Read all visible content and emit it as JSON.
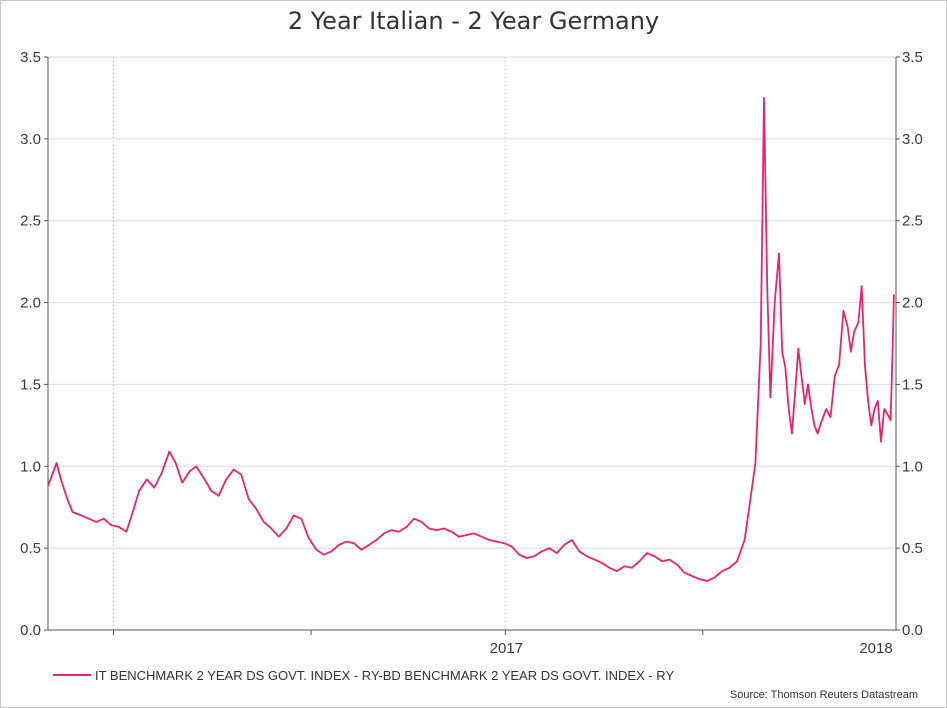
{
  "chart_data": {
    "type": "line",
    "title": "2 Year Italian - 2 Year Germany",
    "ylim": [
      0.0,
      3.5
    ],
    "yticks": [
      "0.0",
      "0.5",
      "1.0",
      "1.5",
      "2.0",
      "2.5",
      "3.0",
      "3.5"
    ],
    "xlim": [
      "2016-05-01",
      "2018-06-30"
    ],
    "xticks": [
      {
        "label": "2017",
        "date": "2017-01-01"
      },
      {
        "label": "2018",
        "date": "2018-01-01"
      }
    ],
    "grid": true,
    "legend_position": "bottom-left",
    "series": [
      {
        "name": "IT BENCHMARK 2 YEAR DS GOVT. INDEX - RY-BD BENCHMARK 2 YEAR DS GOVT. INDEX - RY",
        "color": "#e8246f",
        "points": [
          [
            "2016-05-01",
            0.88
          ],
          [
            "2016-05-05",
            0.95
          ],
          [
            "2016-05-09",
            1.02
          ],
          [
            "2016-05-13",
            0.92
          ],
          [
            "2016-05-19",
            0.8
          ],
          [
            "2016-05-24",
            0.72
          ],
          [
            "2016-06-01",
            0.7
          ],
          [
            "2016-06-08",
            0.68
          ],
          [
            "2016-06-15",
            0.66
          ],
          [
            "2016-06-22",
            0.68
          ],
          [
            "2016-06-29",
            0.64
          ],
          [
            "2016-07-06",
            0.63
          ],
          [
            "2016-07-13",
            0.6
          ],
          [
            "2016-07-18",
            0.7
          ],
          [
            "2016-07-25",
            0.85
          ],
          [
            "2016-08-01",
            0.92
          ],
          [
            "2016-08-08",
            0.87
          ],
          [
            "2016-08-15",
            0.96
          ],
          [
            "2016-08-22",
            1.09
          ],
          [
            "2016-08-28",
            1.02
          ],
          [
            "2016-09-03",
            0.9
          ],
          [
            "2016-09-10",
            0.97
          ],
          [
            "2016-09-16",
            1.0
          ],
          [
            "2016-09-23",
            0.93
          ],
          [
            "2016-09-30",
            0.85
          ],
          [
            "2016-10-07",
            0.82
          ],
          [
            "2016-10-14",
            0.92
          ],
          [
            "2016-10-21",
            0.98
          ],
          [
            "2016-10-28",
            0.95
          ],
          [
            "2016-11-04",
            0.8
          ],
          [
            "2016-11-11",
            0.74
          ],
          [
            "2016-11-18",
            0.66
          ],
          [
            "2016-11-25",
            0.62
          ],
          [
            "2016-12-02",
            0.57
          ],
          [
            "2016-12-09",
            0.62
          ],
          [
            "2016-12-16",
            0.7
          ],
          [
            "2016-12-23",
            0.68
          ],
          [
            "2016-12-30",
            0.56
          ],
          [
            "2017-01-06",
            0.49
          ],
          [
            "2017-01-13",
            0.46
          ],
          [
            "2017-01-20",
            0.48
          ],
          [
            "2017-01-27",
            0.52
          ],
          [
            "2017-02-03",
            0.54
          ],
          [
            "2017-02-10",
            0.53
          ],
          [
            "2017-02-17",
            0.49
          ],
          [
            "2017-02-24",
            0.52
          ],
          [
            "2017-03-03",
            0.55
          ],
          [
            "2017-03-10",
            0.59
          ],
          [
            "2017-03-17",
            0.61
          ],
          [
            "2017-03-24",
            0.6
          ],
          [
            "2017-03-31",
            0.63
          ],
          [
            "2017-04-07",
            0.68
          ],
          [
            "2017-04-14",
            0.66
          ],
          [
            "2017-04-21",
            0.62
          ],
          [
            "2017-04-28",
            0.61
          ],
          [
            "2017-05-05",
            0.62
          ],
          [
            "2017-05-12",
            0.6
          ],
          [
            "2017-05-19",
            0.57
          ],
          [
            "2017-05-26",
            0.58
          ],
          [
            "2017-06-02",
            0.59
          ],
          [
            "2017-06-09",
            0.57
          ],
          [
            "2017-06-16",
            0.55
          ],
          [
            "2017-06-23",
            0.54
          ],
          [
            "2017-06-30",
            0.53
          ],
          [
            "2017-07-07",
            0.51
          ],
          [
            "2017-07-14",
            0.46
          ],
          [
            "2017-07-21",
            0.44
          ],
          [
            "2017-07-28",
            0.45
          ],
          [
            "2017-08-04",
            0.48
          ],
          [
            "2017-08-11",
            0.5
          ],
          [
            "2017-08-18",
            0.47
          ],
          [
            "2017-08-25",
            0.52
          ],
          [
            "2017-09-01",
            0.55
          ],
          [
            "2017-09-08",
            0.48
          ],
          [
            "2017-09-15",
            0.45
          ],
          [
            "2017-09-22",
            0.43
          ],
          [
            "2017-09-29",
            0.41
          ],
          [
            "2017-10-06",
            0.38
          ],
          [
            "2017-10-13",
            0.36
          ],
          [
            "2017-10-20",
            0.39
          ],
          [
            "2017-10-27",
            0.38
          ],
          [
            "2017-11-03",
            0.42
          ],
          [
            "2017-11-10",
            0.47
          ],
          [
            "2017-11-17",
            0.45
          ],
          [
            "2017-11-24",
            0.42
          ],
          [
            "2017-12-01",
            0.43
          ],
          [
            "2017-12-08",
            0.4
          ],
          [
            "2017-12-15",
            0.35
          ],
          [
            "2017-12-22",
            0.33
          ],
          [
            "2017-12-29",
            0.31
          ],
          [
            "2018-01-05",
            0.3
          ],
          [
            "2018-01-12",
            0.32
          ],
          [
            "2018-01-19",
            0.36
          ],
          [
            "2018-01-26",
            0.38
          ],
          [
            "2018-02-02",
            0.42
          ],
          [
            "2018-02-09",
            0.55
          ],
          [
            "2018-02-14",
            0.78
          ],
          [
            "2018-02-19",
            1.02
          ],
          [
            "2018-02-24",
            1.75
          ],
          [
            "2018-02-27",
            3.25
          ],
          [
            "2018-03-02",
            2.1
          ],
          [
            "2018-03-05",
            1.42
          ],
          [
            "2018-03-09",
            2.0
          ],
          [
            "2018-03-13",
            2.3
          ],
          [
            "2018-03-16",
            1.7
          ],
          [
            "2018-03-19",
            1.6
          ],
          [
            "2018-03-22",
            1.35
          ],
          [
            "2018-03-25",
            1.2
          ],
          [
            "2018-03-28",
            1.45
          ],
          [
            "2018-03-31",
            1.72
          ],
          [
            "2018-04-03",
            1.55
          ],
          [
            "2018-04-06",
            1.38
          ],
          [
            "2018-04-09",
            1.5
          ],
          [
            "2018-04-12",
            1.36
          ],
          [
            "2018-04-15",
            1.25
          ],
          [
            "2018-04-18",
            1.2
          ],
          [
            "2018-04-22",
            1.28
          ],
          [
            "2018-04-26",
            1.35
          ],
          [
            "2018-04-30",
            1.3
          ],
          [
            "2018-05-04",
            1.55
          ],
          [
            "2018-05-08",
            1.62
          ],
          [
            "2018-05-12",
            1.95
          ],
          [
            "2018-05-16",
            1.85
          ],
          [
            "2018-05-19",
            1.7
          ],
          [
            "2018-05-22",
            1.82
          ],
          [
            "2018-05-26",
            1.88
          ],
          [
            "2018-05-29",
            2.1
          ],
          [
            "2018-06-01",
            1.62
          ],
          [
            "2018-06-04",
            1.4
          ],
          [
            "2018-06-07",
            1.25
          ],
          [
            "2018-06-10",
            1.35
          ],
          [
            "2018-06-13",
            1.4
          ],
          [
            "2018-06-16",
            1.15
          ],
          [
            "2018-06-19",
            1.35
          ],
          [
            "2018-06-22",
            1.32
          ],
          [
            "2018-06-25",
            1.28
          ],
          [
            "2018-06-27",
            1.75
          ],
          [
            "2018-06-28",
            2.05
          ]
        ]
      }
    ]
  },
  "legend": {
    "label": "IT BENCHMARK 2 YEAR DS GOVT. INDEX - RY-BD BENCHMARK 2 YEAR DS GOVT. INDEX - RY"
  },
  "source": "Source: Thomson Reuters Datastream"
}
